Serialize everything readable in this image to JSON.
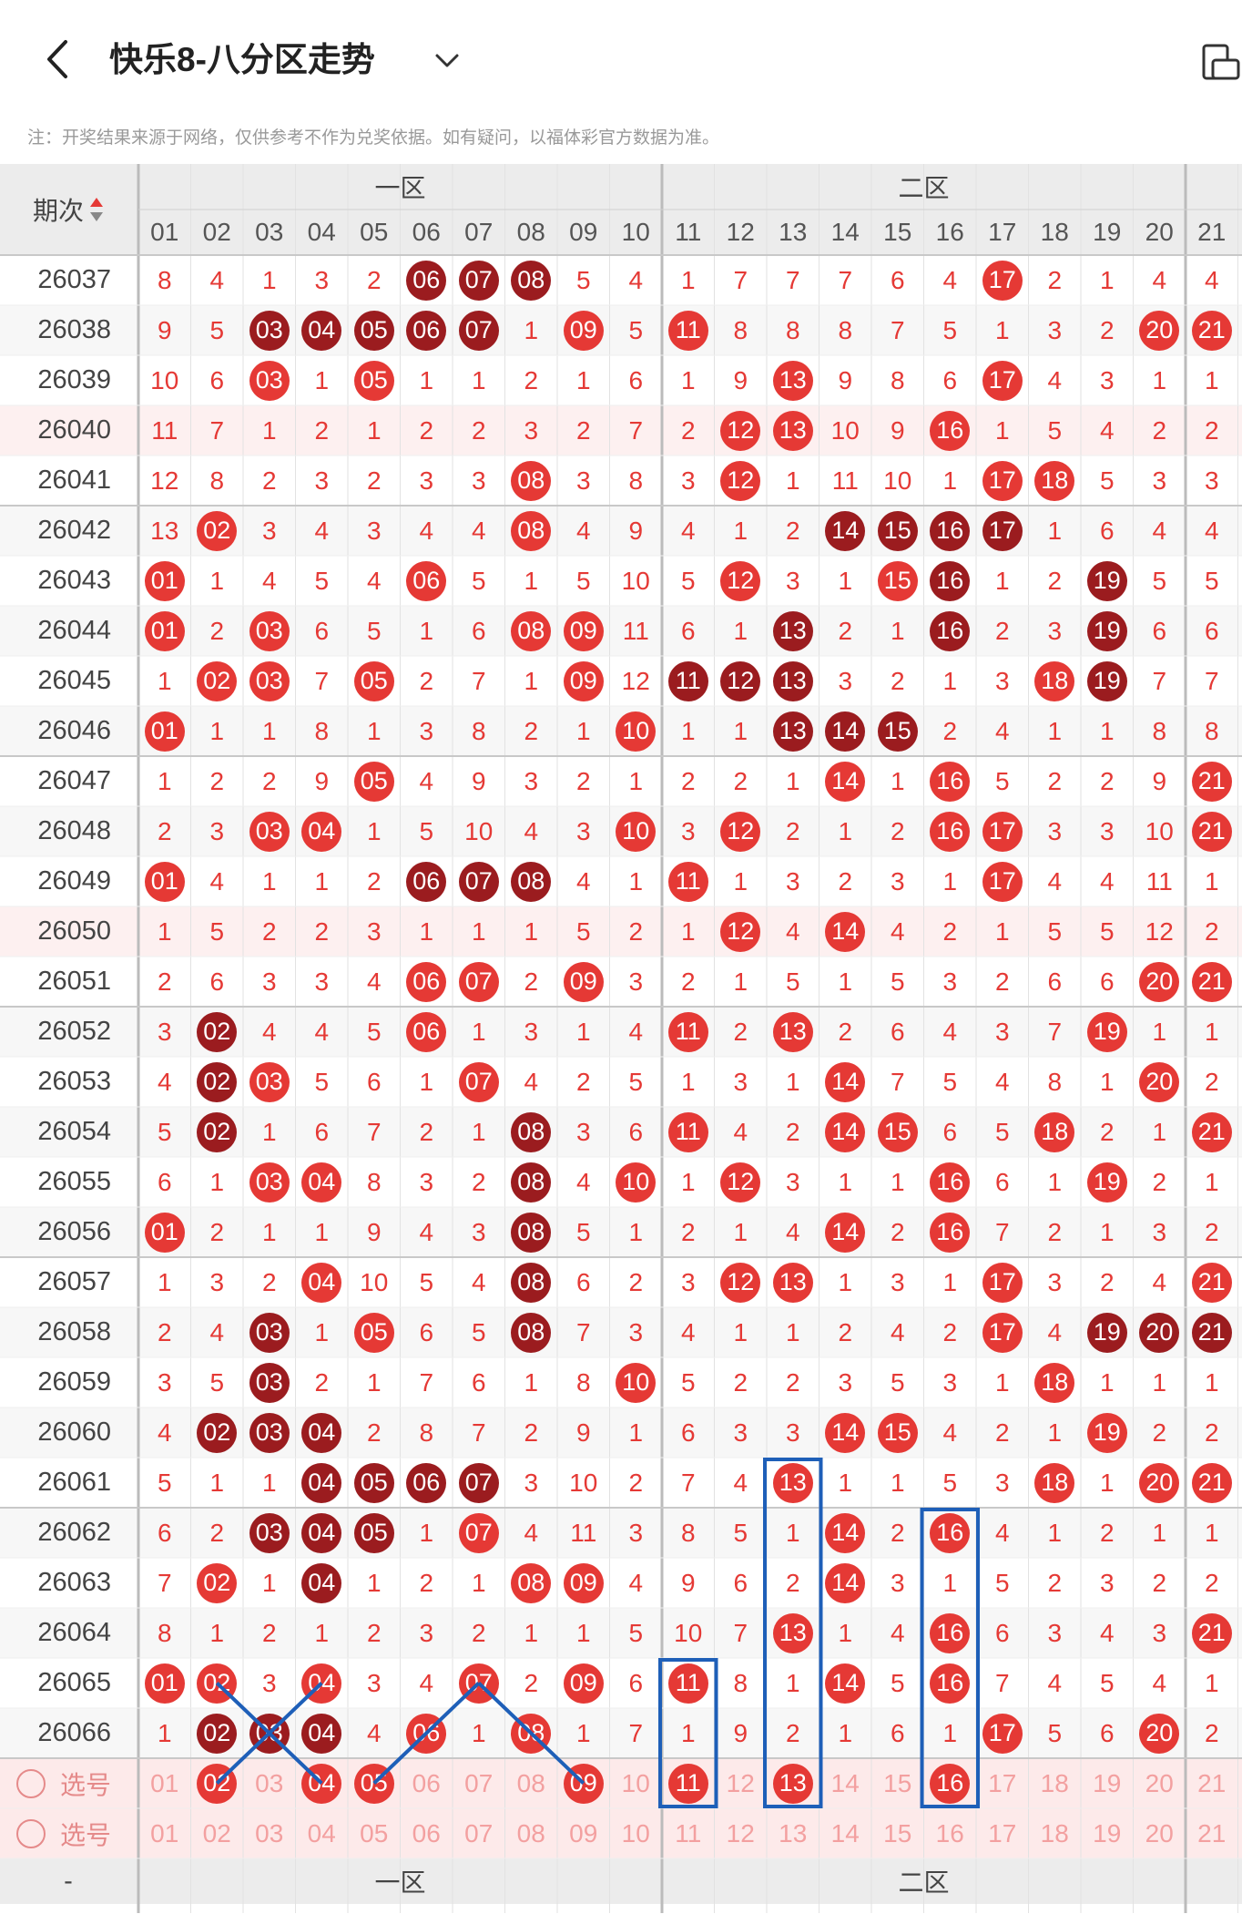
{
  "header": {
    "title": "快乐8-八分区走势",
    "back_icon": "chevron-left-icon",
    "dropdown_icon": "chevron-down-icon",
    "device_icon": "phone-tablet-icon"
  },
  "notice": "注：开奖结果来源于网络，仅供参考不作为兑奖依据。如有疑问，以福体彩官方数据为准。",
  "table": {
    "issue_header": "期次",
    "sort_icon": "sort-arrows-icon",
    "zones": [
      "一区",
      "二区"
    ],
    "columns": [
      "01",
      "02",
      "03",
      "04",
      "05",
      "06",
      "07",
      "08",
      "09",
      "10",
      "11",
      "12",
      "13",
      "14",
      "15",
      "16",
      "17",
      "18",
      "19",
      "20",
      "21"
    ],
    "rows": [
      {
        "issue": "26037",
        "cells": [
          "8",
          "4",
          "1",
          "3",
          "2",
          "06",
          "07",
          "08",
          "5",
          "4",
          "1",
          "7",
          "7",
          "7",
          "6",
          "4",
          "17",
          "2",
          "1",
          "4",
          "4"
        ],
        "hits": [
          5,
          6,
          7,
          16
        ],
        "dark": [
          5,
          6,
          7
        ]
      },
      {
        "issue": "26038",
        "cells": [
          "9",
          "5",
          "03",
          "04",
          "05",
          "06",
          "07",
          "1",
          "09",
          "5",
          "11",
          "8",
          "8",
          "8",
          "7",
          "5",
          "1",
          "3",
          "2",
          "20",
          "21"
        ],
        "hits": [
          2,
          3,
          4,
          5,
          6,
          8,
          10,
          19,
          20
        ],
        "dark": [
          2,
          3,
          4,
          5,
          6
        ]
      },
      {
        "issue": "26039",
        "cells": [
          "10",
          "6",
          "03",
          "1",
          "05",
          "1",
          "1",
          "2",
          "1",
          "6",
          "1",
          "9",
          "13",
          "9",
          "8",
          "6",
          "17",
          "4",
          "3",
          "1",
          "1"
        ],
        "hits": [
          2,
          4,
          12,
          16
        ],
        "dark": []
      },
      {
        "issue": "26040",
        "cells": [
          "11",
          "7",
          "1",
          "2",
          "1",
          "2",
          "2",
          "3",
          "2",
          "7",
          "2",
          "12",
          "13",
          "10",
          "9",
          "16",
          "1",
          "5",
          "4",
          "2",
          "2"
        ],
        "hits": [
          11,
          12,
          15
        ],
        "dark": []
      },
      {
        "issue": "26041",
        "cells": [
          "12",
          "8",
          "2",
          "3",
          "2",
          "3",
          "3",
          "08",
          "3",
          "8",
          "3",
          "12",
          "1",
          "11",
          "10",
          "1",
          "17",
          "18",
          "5",
          "3",
          "3"
        ],
        "hits": [
          7,
          11,
          16,
          17
        ],
        "dark": []
      },
      {
        "issue": "26042",
        "cells": [
          "13",
          "02",
          "3",
          "4",
          "3",
          "4",
          "4",
          "08",
          "4",
          "9",
          "4",
          "1",
          "2",
          "14",
          "15",
          "16",
          "17",
          "1",
          "6",
          "4",
          "4"
        ],
        "hits": [
          1,
          7,
          13,
          14,
          15,
          16
        ],
        "dark": [
          13,
          14,
          15,
          16
        ]
      },
      {
        "issue": "26043",
        "cells": [
          "01",
          "1",
          "4",
          "5",
          "4",
          "06",
          "5",
          "1",
          "5",
          "10",
          "5",
          "12",
          "3",
          "1",
          "15",
          "16",
          "1",
          "2",
          "19",
          "5",
          "5"
        ],
        "hits": [
          0,
          5,
          11,
          14,
          15,
          18
        ],
        "dark": [
          15,
          18
        ]
      },
      {
        "issue": "26044",
        "cells": [
          "01",
          "2",
          "03",
          "6",
          "5",
          "1",
          "6",
          "08",
          "09",
          "11",
          "6",
          "1",
          "13",
          "2",
          "1",
          "16",
          "2",
          "3",
          "19",
          "6",
          "6"
        ],
        "hits": [
          0,
          2,
          7,
          8,
          12,
          15,
          18
        ],
        "dark": [
          12,
          15,
          18
        ]
      },
      {
        "issue": "26045",
        "cells": [
          "1",
          "02",
          "03",
          "7",
          "05",
          "2",
          "7",
          "1",
          "09",
          "12",
          "11",
          "12",
          "13",
          "3",
          "2",
          "1",
          "3",
          "18",
          "19",
          "7",
          "7"
        ],
        "hits": [
          1,
          2,
          4,
          8,
          10,
          11,
          12,
          17,
          18
        ],
        "dark": [
          10,
          11,
          12,
          18
        ]
      },
      {
        "issue": "26046",
        "cells": [
          "01",
          "1",
          "1",
          "8",
          "1",
          "3",
          "8",
          "2",
          "1",
          "10",
          "1",
          "1",
          "13",
          "14",
          "15",
          "2",
          "4",
          "1",
          "1",
          "8",
          "8"
        ],
        "hits": [
          0,
          9,
          12,
          13,
          14
        ],
        "dark": [
          12,
          13,
          14
        ]
      },
      {
        "issue": "26047",
        "cells": [
          "1",
          "2",
          "2",
          "9",
          "05",
          "4",
          "9",
          "3",
          "2",
          "1",
          "2",
          "2",
          "1",
          "14",
          "1",
          "16",
          "5",
          "2",
          "2",
          "9",
          "21"
        ],
        "hits": [
          4,
          13,
          15,
          20
        ],
        "dark": []
      },
      {
        "issue": "26048",
        "cells": [
          "2",
          "3",
          "03",
          "04",
          "1",
          "5",
          "10",
          "4",
          "3",
          "10",
          "3",
          "12",
          "2",
          "1",
          "2",
          "16",
          "17",
          "3",
          "3",
          "10",
          "21"
        ],
        "hits": [
          2,
          3,
          9,
          11,
          15,
          16,
          20
        ],
        "dark": []
      },
      {
        "issue": "26049",
        "cells": [
          "01",
          "4",
          "1",
          "1",
          "2",
          "06",
          "07",
          "08",
          "4",
          "1",
          "11",
          "1",
          "3",
          "2",
          "3",
          "1",
          "17",
          "4",
          "4",
          "11",
          "1"
        ],
        "hits": [
          0,
          5,
          6,
          7,
          10,
          16
        ],
        "dark": [
          5,
          6,
          7
        ]
      },
      {
        "issue": "26050",
        "cells": [
          "1",
          "5",
          "2",
          "2",
          "3",
          "1",
          "1",
          "1",
          "5",
          "2",
          "1",
          "12",
          "4",
          "14",
          "4",
          "2",
          "1",
          "5",
          "5",
          "12",
          "2"
        ],
        "hits": [
          11,
          13
        ],
        "dark": []
      },
      {
        "issue": "26051",
        "cells": [
          "2",
          "6",
          "3",
          "3",
          "4",
          "06",
          "07",
          "2",
          "09",
          "3",
          "2",
          "1",
          "5",
          "1",
          "5",
          "3",
          "2",
          "6",
          "6",
          "20",
          "21"
        ],
        "hits": [
          5,
          6,
          8,
          19,
          20
        ],
        "dark": []
      },
      {
        "issue": "26052",
        "cells": [
          "3",
          "02",
          "4",
          "4",
          "5",
          "06",
          "1",
          "3",
          "1",
          "4",
          "11",
          "2",
          "13",
          "2",
          "6",
          "4",
          "3",
          "7",
          "19",
          "1",
          "1"
        ],
        "hits": [
          1,
          5,
          10,
          12,
          18
        ],
        "dark": [
          1
        ]
      },
      {
        "issue": "26053",
        "cells": [
          "4",
          "02",
          "03",
          "5",
          "6",
          "1",
          "07",
          "4",
          "2",
          "5",
          "1",
          "3",
          "1",
          "14",
          "7",
          "5",
          "4",
          "8",
          "1",
          "20",
          "2"
        ],
        "hits": [
          1,
          2,
          6,
          13,
          19
        ],
        "dark": [
          1
        ]
      },
      {
        "issue": "26054",
        "cells": [
          "5",
          "02",
          "1",
          "6",
          "7",
          "2",
          "1",
          "08",
          "3",
          "6",
          "11",
          "4",
          "2",
          "14",
          "15",
          "6",
          "5",
          "18",
          "2",
          "1",
          "21"
        ],
        "hits": [
          1,
          7,
          10,
          13,
          14,
          17,
          20
        ],
        "dark": [
          1,
          7
        ]
      },
      {
        "issue": "26055",
        "cells": [
          "6",
          "1",
          "03",
          "04",
          "8",
          "3",
          "2",
          "08",
          "4",
          "10",
          "1",
          "12",
          "3",
          "1",
          "1",
          "16",
          "6",
          "1",
          "19",
          "2",
          "1"
        ],
        "hits": [
          2,
          3,
          7,
          9,
          11,
          15,
          18
        ],
        "dark": [
          7
        ]
      },
      {
        "issue": "26056",
        "cells": [
          "01",
          "2",
          "1",
          "1",
          "9",
          "4",
          "3",
          "08",
          "5",
          "1",
          "2",
          "1",
          "4",
          "14",
          "2",
          "16",
          "7",
          "2",
          "1",
          "3",
          "2"
        ],
        "hits": [
          0,
          7,
          13,
          15
        ],
        "dark": [
          7
        ]
      },
      {
        "issue": "26057",
        "cells": [
          "1",
          "3",
          "2",
          "04",
          "10",
          "5",
          "4",
          "08",
          "6",
          "2",
          "3",
          "12",
          "13",
          "1",
          "3",
          "1",
          "17",
          "3",
          "2",
          "4",
          "21"
        ],
        "hits": [
          3,
          7,
          11,
          12,
          16,
          20
        ],
        "dark": [
          7
        ]
      },
      {
        "issue": "26058",
        "cells": [
          "2",
          "4",
          "03",
          "1",
          "05",
          "6",
          "5",
          "08",
          "7",
          "3",
          "4",
          "1",
          "1",
          "2",
          "4",
          "2",
          "17",
          "4",
          "19",
          "20",
          "21"
        ],
        "hits": [
          2,
          4,
          7,
          16,
          18,
          19,
          20
        ],
        "dark": [
          2,
          7,
          18,
          19,
          20
        ]
      },
      {
        "issue": "26059",
        "cells": [
          "3",
          "5",
          "03",
          "2",
          "1",
          "7",
          "6",
          "1",
          "8",
          "10",
          "5",
          "2",
          "2",
          "3",
          "5",
          "3",
          "1",
          "18",
          "1",
          "1",
          "1"
        ],
        "hits": [
          2,
          9,
          17
        ],
        "dark": [
          2
        ]
      },
      {
        "issue": "26060",
        "cells": [
          "4",
          "02",
          "03",
          "04",
          "2",
          "8",
          "7",
          "2",
          "9",
          "1",
          "6",
          "3",
          "3",
          "14",
          "15",
          "4",
          "2",
          "1",
          "19",
          "2",
          "2"
        ],
        "hits": [
          1,
          2,
          3,
          13,
          14,
          18
        ],
        "dark": [
          1,
          2,
          3
        ]
      },
      {
        "issue": "26061",
        "cells": [
          "5",
          "1",
          "1",
          "04",
          "05",
          "06",
          "07",
          "3",
          "10",
          "2",
          "7",
          "4",
          "13",
          "1",
          "1",
          "5",
          "3",
          "18",
          "1",
          "20",
          "21"
        ],
        "hits": [
          3,
          4,
          5,
          6,
          12,
          17,
          19,
          20
        ],
        "dark": [
          3,
          4,
          5,
          6
        ]
      },
      {
        "issue": "26062",
        "cells": [
          "6",
          "2",
          "03",
          "04",
          "05",
          "1",
          "07",
          "4",
          "11",
          "3",
          "8",
          "5",
          "1",
          "14",
          "2",
          "16",
          "4",
          "1",
          "2",
          "1",
          "1"
        ],
        "hits": [
          2,
          3,
          4,
          6,
          13,
          15
        ],
        "dark": [
          2,
          3,
          4
        ]
      },
      {
        "issue": "26063",
        "cells": [
          "7",
          "02",
          "1",
          "04",
          "1",
          "2",
          "1",
          "08",
          "09",
          "4",
          "9",
          "6",
          "2",
          "14",
          "3",
          "1",
          "5",
          "2",
          "3",
          "2",
          "2"
        ],
        "hits": [
          1,
          3,
          7,
          8,
          13
        ],
        "dark": [
          3
        ]
      },
      {
        "issue": "26064",
        "cells": [
          "8",
          "1",
          "2",
          "1",
          "2",
          "3",
          "2",
          "1",
          "1",
          "5",
          "10",
          "7",
          "13",
          "1",
          "4",
          "16",
          "6",
          "3",
          "4",
          "3",
          "21"
        ],
        "hits": [
          12,
          15,
          20
        ],
        "dark": []
      },
      {
        "issue": "26065",
        "cells": [
          "01",
          "02",
          "3",
          "04",
          "3",
          "4",
          "07",
          "2",
          "09",
          "6",
          "11",
          "8",
          "1",
          "14",
          "5",
          "16",
          "7",
          "4",
          "5",
          "4",
          "1"
        ],
        "hits": [
          0,
          1,
          3,
          6,
          8,
          10,
          13,
          15
        ],
        "dark": []
      },
      {
        "issue": "26066",
        "cells": [
          "1",
          "02",
          "03",
          "04",
          "4",
          "06",
          "1",
          "08",
          "1",
          "7",
          "1",
          "9",
          "2",
          "1",
          "6",
          "1",
          "17",
          "5",
          "6",
          "20",
          "2"
        ],
        "hits": [
          1,
          2,
          3,
          5,
          7,
          16,
          19
        ],
        "dark": [
          1,
          2,
          3
        ]
      }
    ],
    "pick_rows": [
      {
        "label": "选号",
        "cells": [
          "01",
          "02",
          "03",
          "04",
          "05",
          "06",
          "07",
          "08",
          "09",
          "10",
          "11",
          "12",
          "13",
          "14",
          "15",
          "16",
          "17",
          "18",
          "19",
          "20",
          "21"
        ],
        "hits": [
          1,
          3,
          4,
          8,
          10,
          12,
          15
        ]
      },
      {
        "label": "选号",
        "cells": [
          "01",
          "02",
          "03",
          "04",
          "05",
          "06",
          "07",
          "08",
          "09",
          "10",
          "11",
          "12",
          "13",
          "14",
          "15",
          "16",
          "17",
          "18",
          "19",
          "20",
          "21"
        ],
        "hits": []
      }
    ],
    "footer_issue": "-"
  }
}
